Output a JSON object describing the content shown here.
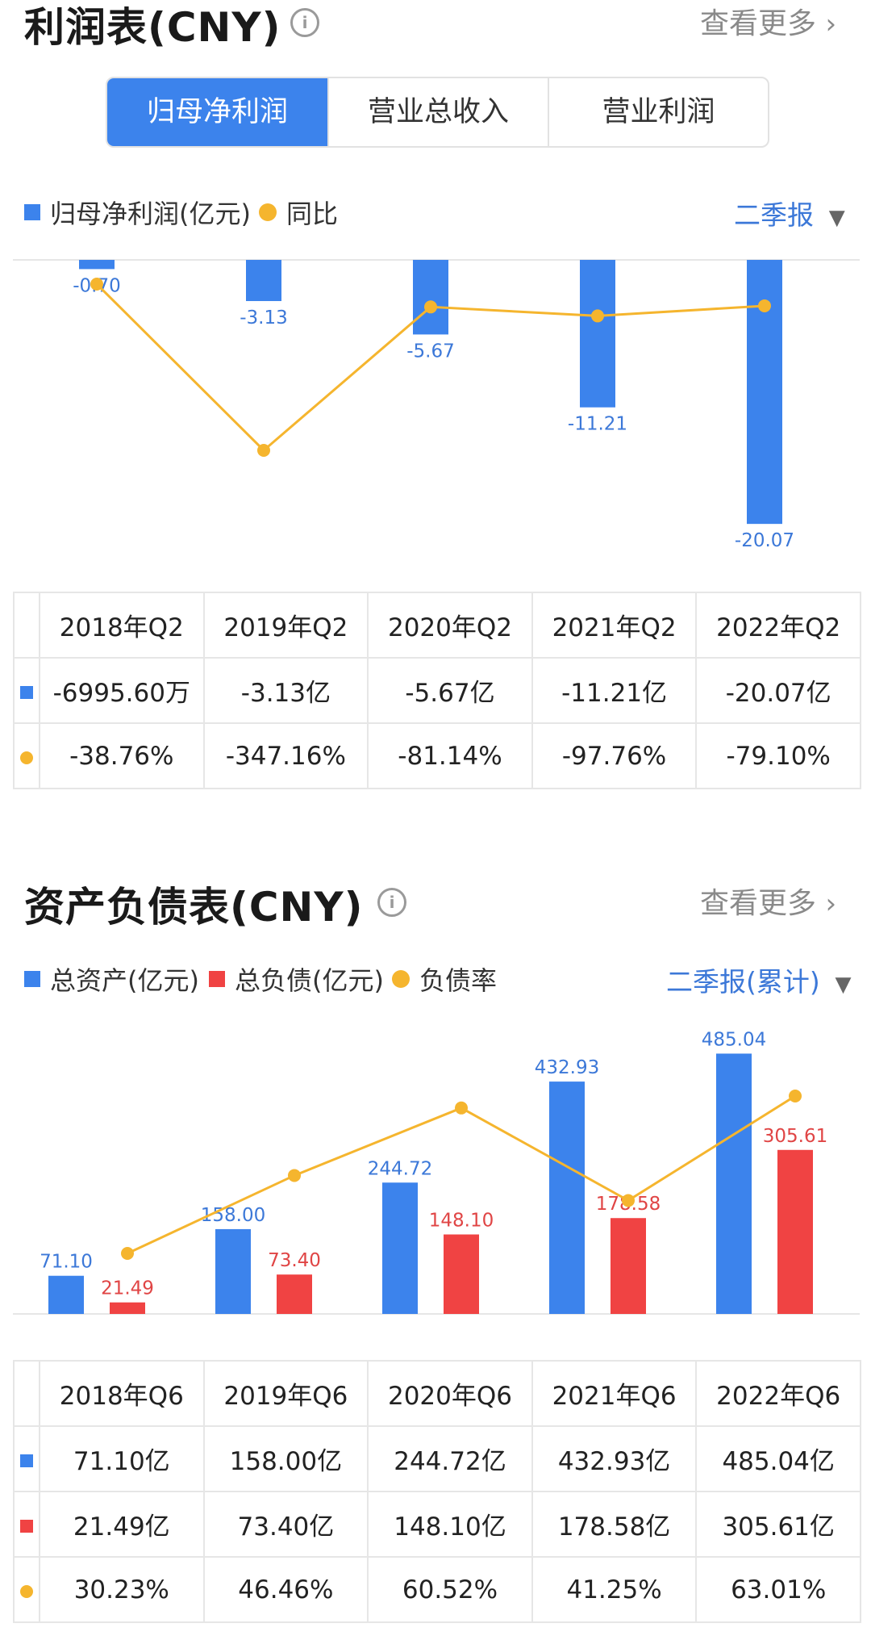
{
  "income": {
    "title": "利润表(CNY)",
    "info_icon": "info-icon",
    "more": "查看更多",
    "tabs": [
      {
        "label": "归母净利润",
        "active": true
      },
      {
        "label": "营业总收入",
        "active": false
      },
      {
        "label": "营业利润",
        "active": false
      }
    ],
    "legend": {
      "bar": "归母净利润(亿元)",
      "line": "同比"
    },
    "period": "二季报",
    "table": {
      "headers": [
        "2018年Q2",
        "2019年Q2",
        "2020年Q2",
        "2021年Q2",
        "2022年Q2"
      ],
      "values": [
        "-6995.60万",
        "-3.13亿",
        "-5.67亿",
        "-11.21亿",
        "-20.07亿"
      ],
      "yoy": [
        "-38.76%",
        "-347.16%",
        "-81.14%",
        "-97.76%",
        "-79.10%"
      ]
    }
  },
  "balance": {
    "title": "资产负债表(CNY)",
    "info_icon": "info-icon",
    "more": "查看更多",
    "legend": {
      "assets": "总资产(亿元)",
      "liabilities": "总负债(亿元)",
      "ratio": "负债率"
    },
    "period": "二季报(累计)",
    "table": {
      "headers": [
        "2018年Q6",
        "2019年Q6",
        "2020年Q6",
        "2021年Q6",
        "2022年Q6"
      ],
      "assets": [
        "71.10亿",
        "158.00亿",
        "244.72亿",
        "432.93亿",
        "485.04亿"
      ],
      "liabilities": [
        "21.49亿",
        "73.40亿",
        "148.10亿",
        "178.58亿",
        "305.61亿"
      ],
      "ratio": [
        "30.23%",
        "46.46%",
        "60.52%",
        "41.25%",
        "63.01%"
      ]
    }
  },
  "colors": {
    "blue": "#3c83ec",
    "red": "#f04343",
    "orange": "#f5b52e",
    "green": "#2d9f6f"
  },
  "chart_data": [
    {
      "type": "bar",
      "categories": [
        "2018年Q2",
        "2019年Q2",
        "2020年Q2",
        "2021年Q2",
        "2022年Q2"
      ],
      "series": [
        {
          "name": "归母净利润(亿元)",
          "values": [
            -0.7,
            -3.13,
            -5.67,
            -11.21,
            -20.07
          ],
          "labels": [
            "-0.70",
            "-3.13",
            "-5.67",
            "-11.21",
            "-20.07"
          ]
        },
        {
          "name": "同比",
          "type": "line",
          "values": [
            -38.76,
            -347.16,
            -81.14,
            -97.76,
            -79.1
          ]
        }
      ]
    },
    {
      "type": "bar",
      "categories": [
        "2018年Q6",
        "2019年Q6",
        "2020年Q6",
        "2021年Q6",
        "2022年Q6"
      ],
      "series": [
        {
          "name": "总资产(亿元)",
          "values": [
            71.1,
            158.0,
            244.72,
            432.93,
            485.04
          ],
          "labels": [
            "71.10",
            "158.00",
            "244.72",
            "432.93",
            "485.04"
          ]
        },
        {
          "name": "总负债(亿元)",
          "values": [
            21.49,
            73.4,
            148.1,
            178.58,
            305.61
          ],
          "labels": [
            "21.49",
            "73.40",
            "148.10",
            "178.58",
            "305.61"
          ]
        },
        {
          "name": "负债率",
          "type": "line",
          "values": [
            30.23,
            46.46,
            60.52,
            41.25,
            63.01
          ]
        }
      ]
    }
  ]
}
